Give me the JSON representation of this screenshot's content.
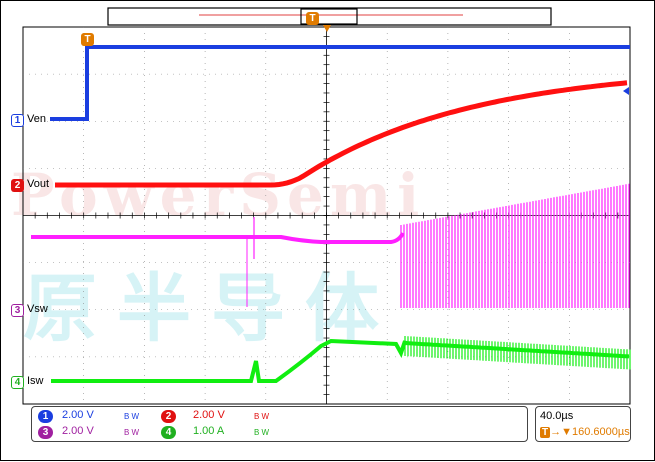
{
  "channels": [
    {
      "id": "1",
      "label": "Ven",
      "color": "#1a3ee0",
      "scale": "2.00 V",
      "bw": "B W"
    },
    {
      "id": "2",
      "label": "Vout",
      "color": "#e01010",
      "scale": "2.00 V",
      "bw": "B W"
    },
    {
      "id": "3",
      "label": "Vsw",
      "color": "#a020a0",
      "scale": "2.00 V",
      "bw": "B W"
    },
    {
      "id": "4",
      "label": "Isw",
      "color": "#20b020",
      "scale": "1.00 A",
      "bw": "B W"
    }
  ],
  "trace_colors": {
    "ch1": "#1a3ee0",
    "ch2": "#ff1010",
    "ch3": "#ff20ff",
    "ch4": "#10ee10"
  },
  "trigger": {
    "marker": "T",
    "color": "#e07b00"
  },
  "timebase": {
    "value": "40.0µs",
    "position": "160.6000µs"
  },
  "watermark": {
    "en": "PowerSemi",
    "cn": "原半导体"
  }
}
